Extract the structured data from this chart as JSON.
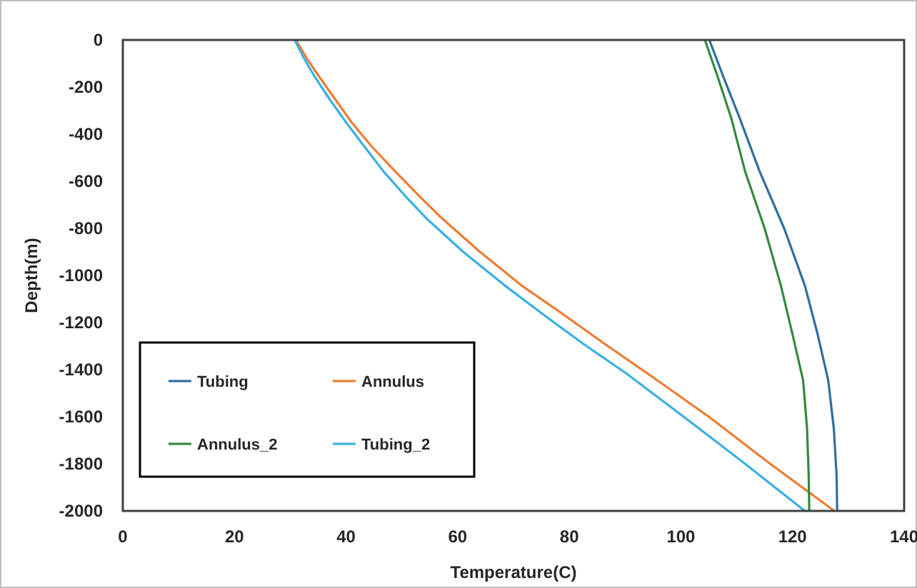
{
  "chart_data": {
    "type": "line",
    "xlabel": "Temperature(C)",
    "ylabel": "Depth(m)",
    "xlim": [
      0,
      140
    ],
    "xticks": [
      0,
      20,
      40,
      60,
      80,
      100,
      120,
      140
    ],
    "ylim": [
      -2000,
      0
    ],
    "yticks": [
      -2000,
      -1800,
      -1600,
      -1400,
      -1200,
      -1000,
      -800,
      -600,
      -400,
      -200,
      0
    ],
    "grid": false,
    "legend": "bottom left",
    "marker": "none",
    "line_style": "solid",
    "series": [
      {
        "name": "Tubing",
        "color": "#2e6f9e",
        "x": [
          105.1,
          107.5,
          110.5,
          114.1,
          118.5,
          122.2,
          124.5,
          126.4,
          127.4,
          127.9,
          128
        ],
        "values": [
          0,
          -150,
          -330,
          -558,
          -800,
          -1042,
          -1250,
          -1446,
          -1650,
          -1850,
          -2000
        ]
      },
      {
        "name": "Annulus",
        "color": "#ed7d31",
        "x": [
          31,
          33,
          35.1,
          38,
          41,
          44.5,
          48.8,
          53,
          57.3,
          64,
          71.4,
          78,
          86,
          94,
          105,
          116,
          127.5
        ],
        "values": [
          0,
          -80,
          -153,
          -250,
          -350,
          -450,
          -558,
          -660,
          -760,
          -900,
          -1042,
          -1150,
          -1285,
          -1416,
          -1600,
          -1800,
          -2000
        ]
      },
      {
        "name": "Annulus_2",
        "color": "#338a3e",
        "x": [
          104.3,
          106.5,
          109,
          111.5,
          115,
          117.9,
          120,
          121.9,
          122.6,
          122.9,
          123
        ],
        "values": [
          0,
          -150,
          -330,
          -558,
          -800,
          -1042,
          -1250,
          -1446,
          -1650,
          -1850,
          -2000
        ]
      },
      {
        "name": "Tubing_2",
        "color": "#3ab0e2",
        "x": [
          30.8,
          32.5,
          34.3,
          37,
          40,
          43.2,
          46.7,
          50.5,
          54.5,
          61,
          68.4,
          75,
          82.5,
          90.2,
          100.5,
          111.5,
          122.2
        ],
        "values": [
          0,
          -80,
          -153,
          -250,
          -350,
          -450,
          -558,
          -660,
          -760,
          -900,
          -1042,
          -1160,
          -1290,
          -1416,
          -1600,
          -1800,
          -2000
        ]
      }
    ]
  }
}
